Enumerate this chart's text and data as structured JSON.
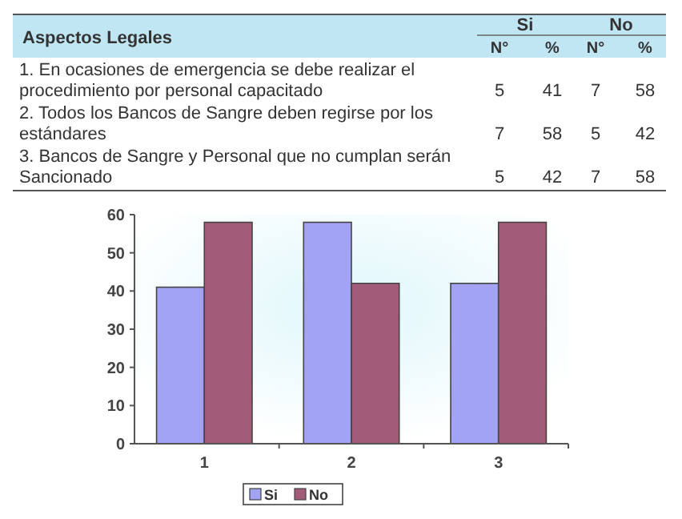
{
  "chart_data": {
    "type": "bar",
    "title": "Aspectos Legales",
    "categories": [
      "1",
      "2",
      "3"
    ],
    "series": [
      {
        "name": "Si",
        "color": "#a3a3f5",
        "values": [
          41,
          58,
          42
        ]
      },
      {
        "name": "No",
        "color": "#a35c78",
        "values": [
          58,
          42,
          58
        ]
      }
    ],
    "annotations": [
      "1. En ocasiones de emergencia se debe realizar el procedimiento por personal capacitado",
      "2. Todos los Bancos de Sangre deben regirse por los estándares",
      "3. Bancos de Sangre y Personal que no cumplan serán Sancionado",
      "N°",
      "%",
      "5",
      "41",
      "7",
      "58",
      "7",
      "58",
      "5",
      "42",
      "5",
      "42",
      "7",
      "58"
    ],
    "ylim": [
      0,
      60
    ],
    "yticks": [
      0,
      10,
      20,
      30,
      40,
      50,
      60
    ],
    "legend": "bottom",
    "grid": false
  }
}
